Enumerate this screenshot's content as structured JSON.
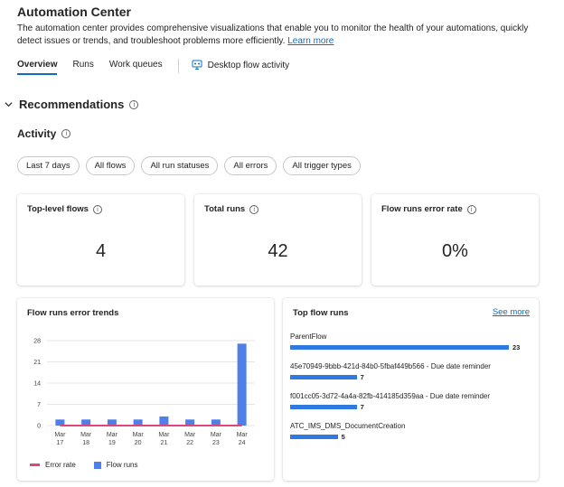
{
  "header": {
    "title": "Automation Center",
    "description": "The automation center provides comprehensive visualizations that enable you to monitor the health of your automations, quickly detect issues or trends, and troubleshoot problems more efficiently.",
    "learn_more": "Learn more"
  },
  "tabs": [
    {
      "label": "Overview",
      "active": true
    },
    {
      "label": "Runs",
      "active": false
    },
    {
      "label": "Work queues",
      "active": false
    },
    {
      "label": "Desktop flow activity",
      "active": false
    }
  ],
  "recommendations": {
    "title": "Recommendations"
  },
  "activity": {
    "title": "Activity"
  },
  "filters": [
    "Last 7 days",
    "All flows",
    "All run statuses",
    "All errors",
    "All trigger types"
  ],
  "kpis": [
    {
      "label": "Top-level flows",
      "value": "4"
    },
    {
      "label": "Total runs",
      "value": "42"
    },
    {
      "label": "Flow runs error rate",
      "value": "0%"
    }
  ],
  "error_trends": {
    "title": "Flow runs error trends",
    "legend": {
      "error_rate": "Error rate",
      "flow_runs": "Flow runs"
    }
  },
  "top_flows": {
    "title": "Top flow runs",
    "see_more": "See more",
    "items": [
      {
        "name": "ParentFlow",
        "count": 23
      },
      {
        "name": "45e70949-9bbb-421d-84b0-5fbaf449b566 - Due date reminder",
        "count": 7
      },
      {
        "name": "f001cc05-3d72-4a4a-82fb-414185d359aa - Due date reminder",
        "count": 7
      },
      {
        "name": "ATC_IMS_DMS_DocumentCreation",
        "count": 5
      }
    ]
  },
  "chart_data": {
    "type": "bar",
    "categories": [
      "Mar 17",
      "Mar 18",
      "Mar 19",
      "Mar 20",
      "Mar 21",
      "Mar 22",
      "Mar 23",
      "Mar 24"
    ],
    "series": [
      {
        "name": "Flow runs",
        "type": "bar",
        "values": [
          2,
          2,
          2,
          2,
          3,
          2,
          2,
          27
        ],
        "color": "#4f7fe8"
      },
      {
        "name": "Error rate",
        "type": "line",
        "values": [
          0,
          0,
          0,
          0,
          0,
          0,
          0,
          0
        ],
        "color": "#e0457b"
      }
    ],
    "yticks": [
      0,
      7,
      14,
      21,
      28
    ],
    "ylim": [
      0,
      28
    ],
    "grid": true,
    "legend": "bottom-left"
  }
}
